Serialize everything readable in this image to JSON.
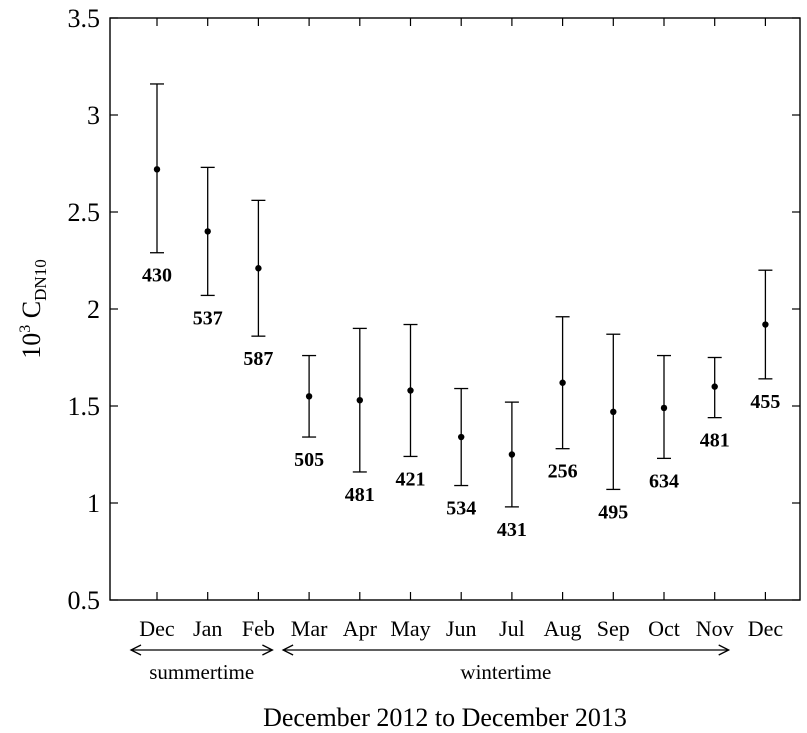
{
  "chart_data": {
    "type": "errorbar",
    "xlabel": "December 2012 to December 2013",
    "ylabel": {
      "prefix": "10",
      "superscript": "3",
      "main": " C",
      "subscript": "DN10"
    },
    "ylim": [
      0.5,
      3.5
    ],
    "yticks": [
      "0.5",
      "1",
      "1.5",
      "2",
      "2.5",
      "3",
      "3.5"
    ],
    "grid": false,
    "categories": [
      "Dec",
      "Jan",
      "Feb",
      "Mar",
      "Apr",
      "May",
      "Jun",
      "Jul",
      "Aug",
      "Sep",
      "Oct",
      "Nov",
      "Dec"
    ],
    "values": [
      2.72,
      2.4,
      2.21,
      1.55,
      1.53,
      1.58,
      1.34,
      1.25,
      1.62,
      1.47,
      1.49,
      1.6,
      1.92
    ],
    "lower": [
      2.29,
      2.07,
      1.86,
      1.34,
      1.16,
      1.24,
      1.09,
      0.98,
      1.28,
      1.07,
      1.23,
      1.44,
      1.64
    ],
    "upper": [
      3.16,
      2.73,
      2.56,
      1.76,
      1.9,
      1.92,
      1.59,
      1.52,
      1.96,
      1.87,
      1.76,
      1.75,
      2.2
    ],
    "counts": [
      "430",
      "537",
      "587",
      "505",
      "481",
      "421",
      "534",
      "431",
      "256",
      "495",
      "634",
      "481",
      "455"
    ],
    "periods": [
      {
        "label": "summertime",
        "from": 0,
        "to": 2
      },
      {
        "label": "wintertime",
        "from": 3,
        "to": 11
      }
    ]
  }
}
